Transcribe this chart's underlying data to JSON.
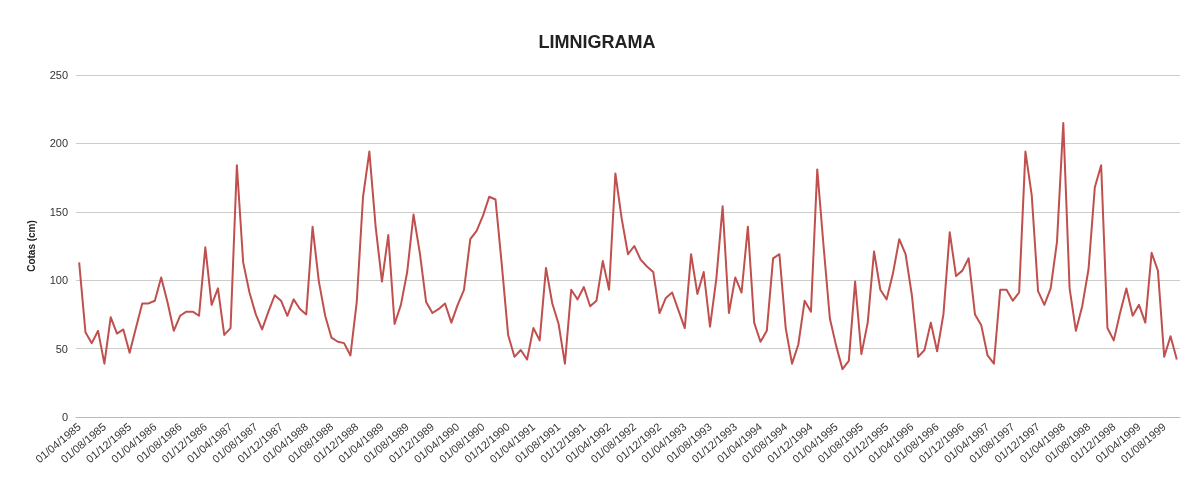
{
  "chart_data": {
    "type": "line",
    "title": "LIMNIGRAMA",
    "ylabel": "Cotas (cm)",
    "categories": [
      "01/04/1985",
      null,
      null,
      null,
      "01/08/1985",
      null,
      null,
      null,
      "01/12/1985",
      null,
      null,
      null,
      "01/04/1986",
      null,
      null,
      null,
      "01/08/1986",
      null,
      null,
      null,
      "01/12/1986",
      null,
      null,
      null,
      "01/04/1987",
      null,
      null,
      null,
      "01/08/1987",
      null,
      null,
      null,
      "01/12/1987",
      null,
      null,
      null,
      "01/04/1988",
      null,
      null,
      null,
      "01/08/1988",
      null,
      null,
      null,
      "01/12/1988",
      null,
      null,
      null,
      "01/04/1989",
      null,
      null,
      null,
      "01/08/1989",
      null,
      null,
      null,
      "01/12/1989",
      null,
      null,
      null,
      "01/04/1990",
      null,
      null,
      null,
      "01/08/1990",
      null,
      null,
      null,
      "01/12/1990",
      null,
      null,
      null,
      "01/04/1991",
      null,
      null,
      null,
      "01/08/1991",
      null,
      null,
      null,
      "01/12/1991",
      null,
      null,
      null,
      "01/04/1992",
      null,
      null,
      null,
      "01/08/1992",
      null,
      null,
      null,
      "01/12/1992",
      null,
      null,
      null,
      "01/04/1993",
      null,
      null,
      null,
      "01/08/1993",
      null,
      null,
      null,
      "01/12/1993",
      null,
      null,
      null,
      "01/04/1994",
      null,
      null,
      null,
      "01/08/1994",
      null,
      null,
      null,
      "01/12/1994",
      null,
      null,
      null,
      "01/04/1995",
      null,
      null,
      null,
      "01/08/1995",
      null,
      null,
      null,
      "01/12/1995",
      null,
      null,
      null,
      "01/04/1996",
      null,
      null,
      null,
      "01/08/1996",
      null,
      null,
      null,
      "01/12/1996",
      null,
      null,
      null,
      "01/04/1997",
      null,
      null,
      null,
      "01/08/1997",
      null,
      null,
      null,
      "01/12/1997",
      null,
      null,
      null,
      "01/04/1998",
      null,
      null,
      null,
      "01/08/1998",
      null,
      null,
      null,
      "01/12/1998",
      null,
      null,
      null,
      "01/04/1999",
      null,
      null,
      null,
      "01/08/1999",
      null,
      null
    ],
    "series": [
      {
        "color": "#c0504d",
        "values": [
          113,
          62,
          54,
          63,
          39,
          73,
          61,
          64,
          47,
          65,
          83,
          83,
          85,
          102,
          84,
          63,
          74,
          77,
          77,
          74,
          124,
          82,
          94,
          60,
          65,
          184,
          113,
          91,
          75,
          64,
          77,
          89,
          85,
          74,
          86,
          79,
          75,
          139,
          99,
          74,
          58,
          55,
          54,
          45,
          84,
          161,
          194,
          139,
          99,
          133,
          68,
          82,
          106,
          148,
          120,
          84,
          76,
          79,
          83,
          69,
          82,
          93,
          130,
          136,
          147,
          161,
          159,
          111,
          60,
          44,
          49,
          42,
          65,
          56,
          109,
          83,
          68,
          39,
          93,
          86,
          95,
          81,
          85,
          114,
          93,
          178,
          145,
          119,
          125,
          115,
          110,
          106,
          76,
          87,
          91,
          78,
          65,
          119,
          90,
          106,
          66,
          101,
          154,
          76,
          102,
          91,
          139,
          69,
          55,
          63,
          116,
          119,
          65,
          39,
          53,
          85,
          77,
          181,
          125,
          72,
          52,
          35,
          41,
          99,
          46,
          69,
          121,
          93,
          86,
          105,
          130,
          119,
          89,
          44,
          49,
          69,
          48,
          75,
          135,
          103,
          107,
          116,
          75,
          67,
          45,
          39,
          93,
          93,
          85,
          91,
          194,
          162,
          92,
          82,
          94,
          128,
          215,
          94,
          63,
          81,
          108,
          168,
          184,
          65,
          56,
          76,
          94,
          74,
          82,
          69,
          120,
          107,
          44,
          59,
          42
        ]
      }
    ],
    "ylim": [
      0,
      250
    ],
    "yticks": [
      0,
      50,
      100,
      150,
      200,
      250
    ],
    "grid": "y",
    "marker": "none",
    "line_style": "solid"
  }
}
